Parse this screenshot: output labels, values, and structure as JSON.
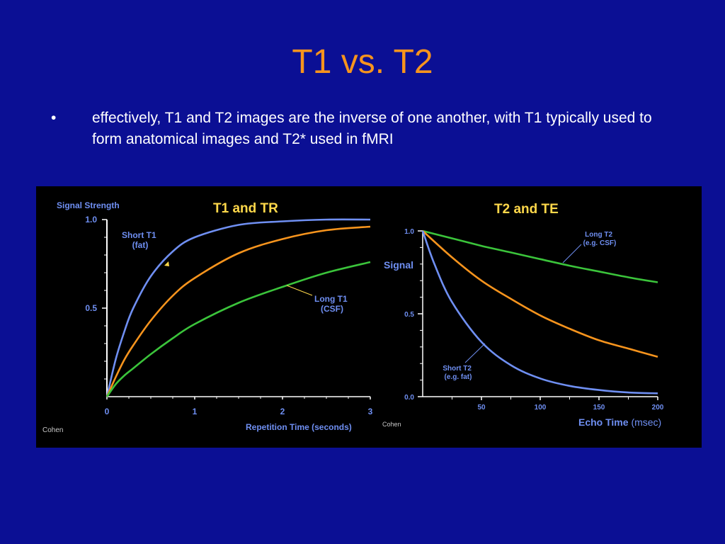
{
  "slide": {
    "title": "T1 vs. T2",
    "bullet_symbol": "•",
    "bullet_text": "effectively, T1 and T2 images are the inverse of one another, with T1 typically used to form anatomical images and T2* used in fMRI"
  },
  "colors": {
    "background": "#0b0f94",
    "title": "#f7941d",
    "figure_background": "#000000",
    "axis_text": "#6f8ff2",
    "chart_title": "#ffd84a",
    "fast_curve": "#6f8ff2",
    "mid_curve": "#f7941d",
    "slow_curve": "#3bc43b"
  },
  "chart_data": [
    {
      "type": "line",
      "title": "T1 and TR",
      "ylabel": "Signal Strength",
      "xlabel": "Repetition Time (seconds)",
      "xlim": [
        0,
        3
      ],
      "ylim": [
        0,
        1
      ],
      "x_ticks": [
        0,
        1,
        2,
        3
      ],
      "x_tick_labels": [
        "0",
        "1",
        "2",
        "3"
      ],
      "y_ticks": [
        0.5,
        1.0
      ],
      "y_tick_labels": [
        "0.5",
        "1.0"
      ],
      "grid": false,
      "credit": "Cohen",
      "series": [
        {
          "name": "Short T1 (fat)",
          "color": "#6f8ff2",
          "x": [
            0,
            0.1,
            0.2,
            0.3,
            0.5,
            0.75,
            1.0,
            1.5,
            2.0,
            2.5,
            3.0
          ],
          "values": [
            0,
            0.21,
            0.37,
            0.5,
            0.68,
            0.82,
            0.9,
            0.97,
            0.99,
            1.0,
            1.0
          ]
        },
        {
          "name": "",
          "color": "#f7941d",
          "x": [
            0,
            0.1,
            0.2,
            0.3,
            0.5,
            0.75,
            1.0,
            1.5,
            2.0,
            2.5,
            3.0
          ],
          "values": [
            0,
            0.11,
            0.21,
            0.29,
            0.43,
            0.57,
            0.67,
            0.81,
            0.89,
            0.94,
            0.96
          ]
        },
        {
          "name": "Long T1 (CSF)",
          "color": "#3bc43b",
          "x": [
            0,
            0.1,
            0.2,
            0.3,
            0.5,
            0.75,
            1.0,
            1.5,
            2.0,
            2.5,
            3.0
          ],
          "values": [
            0,
            0.07,
            0.12,
            0.16,
            0.24,
            0.33,
            0.41,
            0.53,
            0.62,
            0.7,
            0.76
          ]
        }
      ],
      "annotations": [
        {
          "lines": [
            "Short T1",
            "(fat)"
          ]
        },
        {
          "lines": [
            "Long T1",
            "(CSF)"
          ]
        }
      ]
    },
    {
      "type": "line",
      "title": "T2 and TE",
      "ylabel": "Signal",
      "xlabel": "Echo Time",
      "xunit": "(msec)",
      "xlim": [
        0,
        200
      ],
      "ylim": [
        0,
        1
      ],
      "x_ticks": [
        50,
        100,
        150,
        200
      ],
      "x_tick_labels": [
        "50",
        "100",
        "150",
        "200"
      ],
      "y_ticks": [
        0,
        0.5,
        1.0
      ],
      "y_tick_labels": [
        "0.0",
        "0.5",
        "1.0"
      ],
      "grid": false,
      "credit": "Cohen",
      "series": [
        {
          "name": "Long T2 (e.g. CSF)",
          "color": "#3bc43b",
          "x": [
            0,
            25,
            50,
            75,
            100,
            125,
            150,
            175,
            200
          ],
          "values": [
            1.0,
            0.955,
            0.91,
            0.87,
            0.83,
            0.79,
            0.755,
            0.72,
            0.69
          ]
        },
        {
          "name": "",
          "color": "#f7941d",
          "x": [
            0,
            25,
            50,
            75,
            100,
            125,
            150,
            175,
            200
          ],
          "values": [
            1.0,
            0.84,
            0.7,
            0.59,
            0.49,
            0.41,
            0.34,
            0.29,
            0.24
          ]
        },
        {
          "name": "Short T2 (e.g. fat)",
          "color": "#6f8ff2",
          "x": [
            0,
            10,
            25,
            50,
            75,
            100,
            125,
            150,
            175,
            200
          ],
          "values": [
            1.0,
            0.8,
            0.57,
            0.33,
            0.19,
            0.11,
            0.065,
            0.04,
            0.025,
            0.02
          ]
        }
      ],
      "annotations": [
        {
          "lines": [
            "Long T2",
            "(e.g. CSF)"
          ]
        },
        {
          "lines": [
            "Short T2",
            "(e.g. fat)"
          ]
        }
      ]
    }
  ]
}
